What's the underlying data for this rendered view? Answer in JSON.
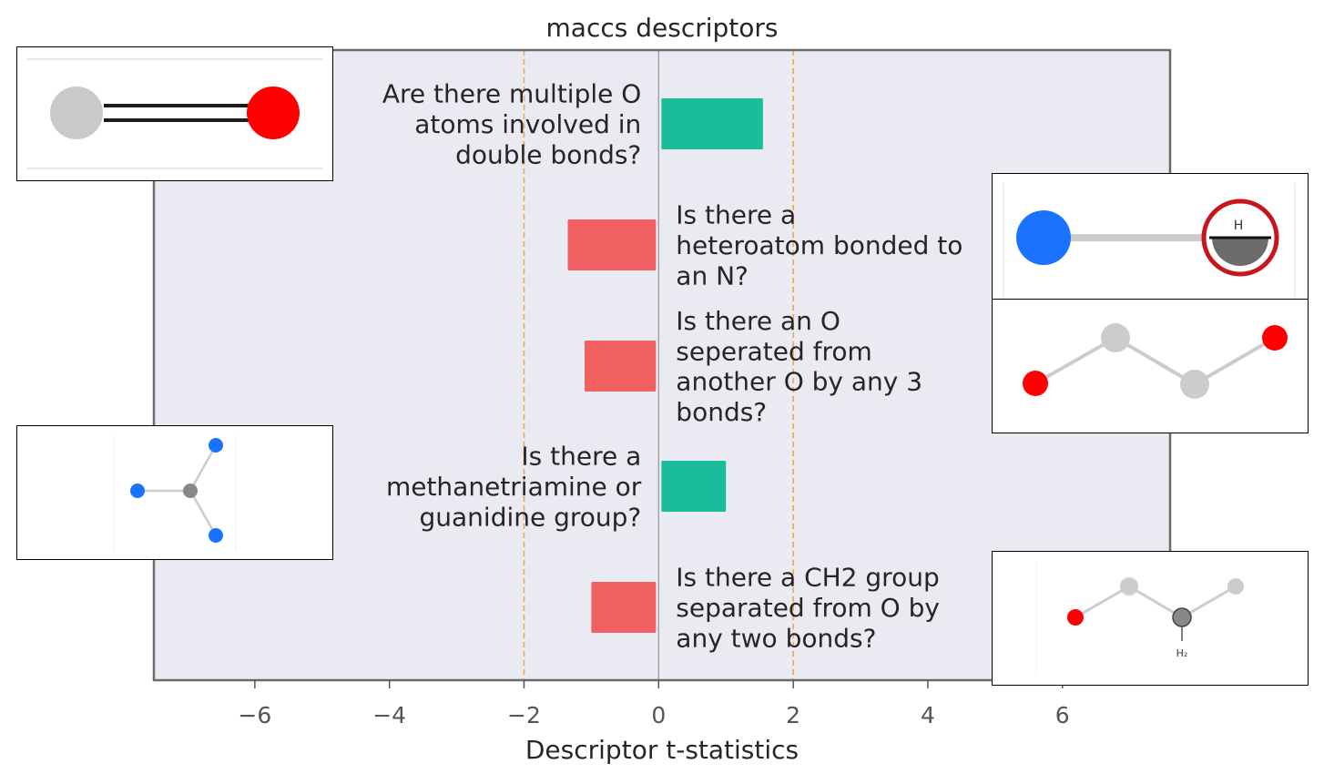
{
  "chart_data": {
    "type": "bar",
    "orientation": "horizontal",
    "title": "maccs descriptors",
    "xlabel": "Descriptor t-statistics",
    "ylabel": "",
    "xlim": [
      -7.5,
      7.6
    ],
    "xticks": [
      -6,
      -4,
      -2,
      0,
      2,
      4,
      6
    ],
    "xtick_labels": [
      "−6",
      "−4",
      "−2",
      "0",
      "2",
      "4",
      "6"
    ],
    "thresholds": [
      -2,
      2
    ],
    "grid": false,
    "categories": [
      "Are there multiple O atoms involved in double bonds?",
      "Is there a heteroatom bonded to an N?",
      "Is there an O seperated from another O by any 3 bonds?",
      "Is there a methanetriamine or guanidine group?",
      "Is there a CH2 group separated from O by any two bonds?"
    ],
    "label_lines": [
      [
        "Are there multiple O",
        "atoms involved in",
        "double bonds?"
      ],
      [
        "Is there a",
        "heteroatom bonded to",
        "an N?"
      ],
      [
        "Is there an O",
        "seperated from",
        "another O by any 3",
        "bonds?"
      ],
      [
        "Is there a",
        "methanetriamine or",
        "guanidine group?"
      ],
      [
        "Is there a CH2 group",
        "separated from O by",
        "any two bonds?"
      ]
    ],
    "values": [
      1.55,
      -1.35,
      -1.1,
      1.0,
      -1.0
    ]
  },
  "colors": {
    "positive": "#1abc9c",
    "negative": "#f06060",
    "plot_background": "#eaeaf2",
    "threshold_line": "#f5a742",
    "zero_line": "#9a9a9a",
    "frame": "#6a6a6a",
    "text": "#262626",
    "tick_text": "#555555"
  },
  "insets": [
    {
      "name": "co-double-bond",
      "atoms": [
        "carbon-gray",
        "oxygen-red"
      ]
    },
    {
      "name": "n-h-bond",
      "atoms": [
        "nitrogen-blue",
        "hydrogen-highlighted"
      ],
      "atom_label": "H"
    },
    {
      "name": "o-c-c-o-chain",
      "atoms": [
        "oxygen-red",
        "carbon-gray",
        "carbon-gray",
        "oxygen-red"
      ]
    },
    {
      "name": "methanetriamine",
      "atoms": [
        "carbon-dark",
        "nitrogen-blue",
        "nitrogen-blue",
        "nitrogen-blue"
      ]
    },
    {
      "name": "ch2-o-chain",
      "atoms": [
        "oxygen-red",
        "carbon-gray",
        "carbon-dark",
        "carbon-gray"
      ],
      "atom_label": "H₂"
    }
  ]
}
